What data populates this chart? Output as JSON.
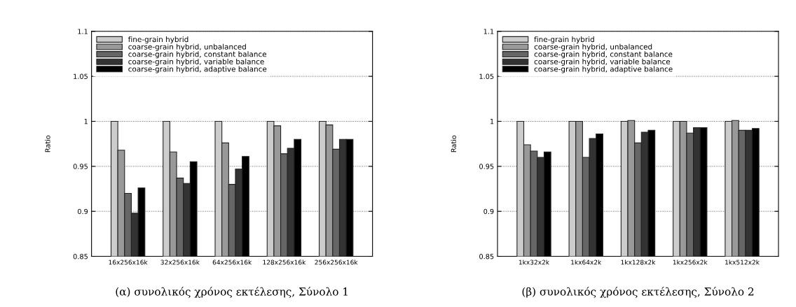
{
  "chart_data": [
    {
      "type": "bar",
      "ylabel": "Ratio",
      "categories": [
        "16x256x16k",
        "32x256x16k",
        "64x256x16k",
        "128x256x16k",
        "256x256x16k"
      ],
      "series": [
        {
          "name": "fine-grain hybrid",
          "color": "#cccccc",
          "values": [
            1,
            1,
            1,
            1,
            1
          ]
        },
        {
          "name": "coarse-grain hybrid, unbalanced",
          "color": "#999999",
          "values": [
            0.968,
            0.966,
            0.976,
            0.995,
            0.996
          ]
        },
        {
          "name": "coarse-grain hybrid, constant balance",
          "color": "#666666",
          "values": [
            0.92,
            0.937,
            0.93,
            0.964,
            0.969
          ]
        },
        {
          "name": "coarse-grain hybrid, variable balance",
          "color": "#333333",
          "values": [
            0.898,
            0.931,
            0.947,
            0.97,
            0.98
          ]
        },
        {
          "name": "coarse-grain hybrid, adaptive balance",
          "color": "#000000",
          "values": [
            0.926,
            0.955,
            0.961,
            0.98,
            0.98
          ]
        }
      ],
      "ylim": [
        0.85,
        1.1
      ],
      "yticks": [
        0.85,
        0.9,
        0.95,
        1,
        1.05,
        1.1
      ],
      "grid": "y",
      "legend": "top left",
      "annotations": [
        "(α) συνολικός χρόνος εκτέλεσης, Σύνολο 1"
      ]
    },
    {
      "type": "bar",
      "ylabel": "Ratio",
      "categories": [
        "1kx32x2k",
        "1kx64x2k",
        "1kx128x2k",
        "1kx256x2k",
        "1kx512x2k"
      ],
      "series": [
        {
          "name": "fine-grain hybrid",
          "color": "#cccccc",
          "values": [
            1,
            1,
            1,
            1,
            1
          ]
        },
        {
          "name": "coarse-grain hybrid, unbalanced",
          "color": "#999999",
          "values": [
            0.974,
            1.0,
            1.001,
            1.0,
            1.001
          ]
        },
        {
          "name": "coarse-grain hybrid, constant balance",
          "color": "#666666",
          "values": [
            0.967,
            0.96,
            0.976,
            0.987,
            0.99
          ]
        },
        {
          "name": "coarse-grain hybrid, variable balance",
          "color": "#333333",
          "values": [
            0.96,
            0.981,
            0.988,
            0.993,
            0.99
          ]
        },
        {
          "name": "coarse-grain hybrid, adaptive balance",
          "color": "#000000",
          "values": [
            0.966,
            0.986,
            0.99,
            0.993,
            0.992
          ]
        }
      ],
      "ylim": [
        0.85,
        1.1
      ],
      "yticks": [
        0.85,
        0.9,
        0.95,
        1,
        1.05,
        1.1
      ],
      "grid": "y",
      "legend": "top left",
      "annotations": [
        "(β) συνολικός χρόνος εκτέλεσης, Σύνολο 2"
      ]
    }
  ]
}
